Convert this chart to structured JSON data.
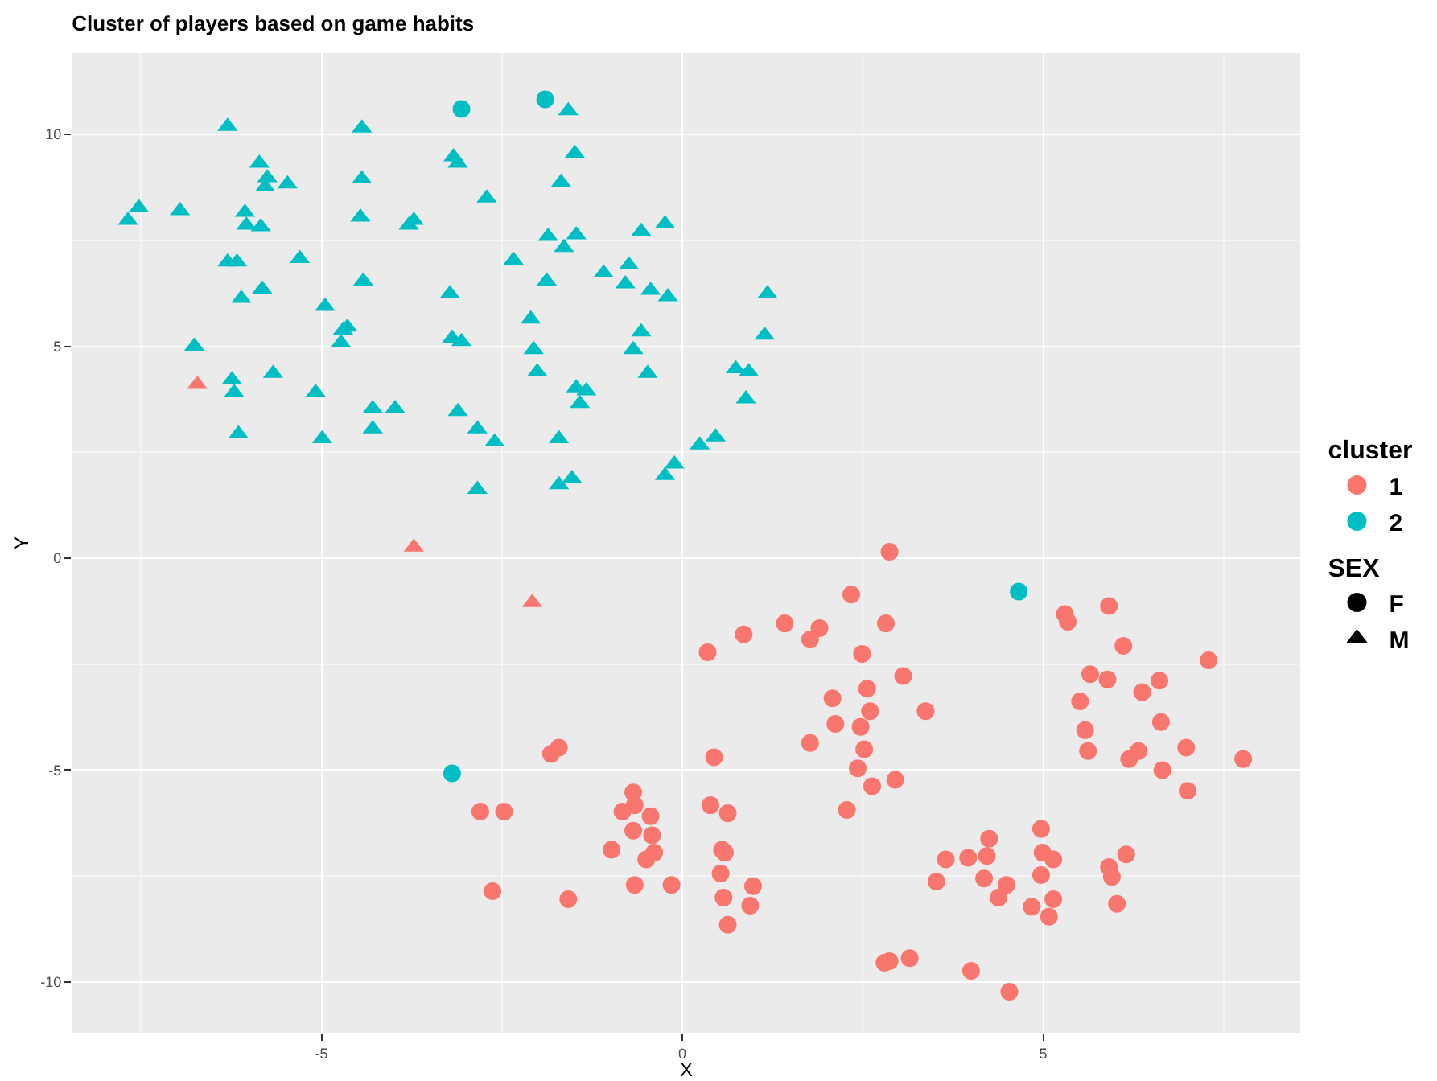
{
  "chart_data": {
    "type": "scatter",
    "title": "Cluster of players based on game habits",
    "xlabel": "X",
    "ylabel": "Y",
    "legend_title": [
      "cluster",
      "SEX"
    ],
    "legend": "right",
    "grid": true,
    "xlim": [
      -8.45,
      8.56
    ],
    "xticks": [
      -5,
      0,
      5
    ],
    "ylim": [
      -11.2,
      11.92
    ],
    "yticks": [
      -10,
      -5,
      0,
      5,
      10
    ],
    "series": [
      {
        "name": "1",
        "color": "#f8766d",
        "marker": "circle",
        "x": [
          -2.8,
          -2.47,
          -2.63,
          -1.82,
          -1.71,
          -1.58,
          -0.98,
          -0.83,
          -0.68,
          -0.66,
          -0.68,
          -0.66,
          -0.5,
          -0.42,
          -0.44,
          -0.39,
          -0.15,
          0.35,
          0.44,
          0.39,
          0.53,
          0.55,
          0.57,
          0.63,
          0.59,
          0.63,
          0.85,
          0.94,
          0.98,
          1.42,
          1.77,
          1.9,
          1.77,
          2.08,
          2.12,
          2.28,
          2.34,
          2.49,
          2.56,
          2.47,
          2.43,
          2.52,
          2.63,
          2.6,
          2.82,
          2.87,
          2.95,
          3.06,
          3.37,
          2.8,
          2.87,
          3.15,
          3.52,
          3.65,
          3.96,
          4.0,
          4.18,
          4.22,
          4.25,
          4.38,
          4.49,
          4.53,
          4.84,
          5.08,
          4.97,
          4.97,
          4.99,
          5.14,
          5.14,
          5.3,
          5.34,
          5.51,
          5.58,
          5.65,
          5.62,
          5.91,
          5.89,
          5.91,
          5.95,
          6.02,
          6.11,
          6.15,
          6.19,
          6.32,
          6.37,
          6.61,
          6.63,
          6.65,
          6.98,
          7.0,
          7.29,
          7.77
        ],
        "values": [
          -5.98,
          -5.98,
          -7.86,
          -4.62,
          -4.47,
          -8.05,
          -6.88,
          -5.98,
          -5.53,
          -5.83,
          -6.43,
          -7.71,
          -7.11,
          -6.54,
          -6.09,
          -6.95,
          -7.71,
          -2.22,
          -4.7,
          -5.83,
          -7.44,
          -6.88,
          -8.01,
          -8.65,
          -6.95,
          -6.02,
          -1.8,
          -8.2,
          -7.74,
          -1.54,
          -1.92,
          -1.65,
          -4.36,
          -3.31,
          -3.91,
          -5.94,
          -0.86,
          -2.26,
          -3.08,
          -3.98,
          -4.96,
          -4.51,
          -5.38,
          -3.61,
          -1.54,
          0.15,
          -5.23,
          -2.78,
          -3.61,
          -9.55,
          -9.51,
          -9.44,
          -7.63,
          -7.11,
          -7.07,
          -9.74,
          -7.56,
          -7.03,
          -6.62,
          -8.01,
          -7.71,
          -10.23,
          -8.23,
          -8.46,
          -6.39,
          -7.48,
          -6.95,
          -7.11,
          -8.05,
          -1.32,
          -1.5,
          -3.38,
          -4.06,
          -2.74,
          -4.55,
          -1.13,
          -2.86,
          -7.29,
          -7.52,
          -8.16,
          -2.07,
          -6.99,
          -4.74,
          -4.55,
          -3.16,
          -2.89,
          -3.87,
          -5.0,
          -4.47,
          -5.49,
          -2.41,
          -4.74
        ]
      },
      {
        "color": "#f8766d",
        "marker": "triangle",
        "x": [
          -6.72,
          -3.72,
          -2.08
        ],
        "values": [
          4.1,
          0.26,
          -1.05
        ]
      },
      {
        "name": "2",
        "color": "#00bfc4",
        "marker": "circle",
        "x": [
          -3.06,
          -1.9,
          4.66,
          -3.19
        ],
        "values": [
          10.6,
          10.83,
          -0.79,
          -5.08
        ]
      },
      {
        "color": "#00bfc4",
        "marker": "triangle",
        "x": [
          -7.68,
          -7.53,
          -6.96,
          -6.76,
          -6.24,
          -6.3,
          -6.3,
          -6.21,
          -6.15,
          -6.11,
          -6.04,
          -6.17,
          -6.06,
          -5.86,
          -5.78,
          -5.84,
          -5.82,
          -5.75,
          -5.67,
          -5.47,
          -5.3,
          -5.08,
          -4.95,
          -4.99,
          -4.73,
          -4.7,
          -4.64,
          -4.44,
          -4.44,
          -4.42,
          -4.46,
          -4.29,
          -4.29,
          -3.98,
          -3.79,
          -3.72,
          -3.22,
          -3.17,
          -3.19,
          -3.11,
          -3.11,
          -3.06,
          -2.84,
          -2.71,
          -2.6,
          -2.84,
          -2.34,
          -2.1,
          -2.06,
          -2.01,
          -1.88,
          -1.86,
          -1.68,
          -1.71,
          -1.64,
          -1.71,
          -1.58,
          -1.49,
          -1.53,
          -1.47,
          -1.47,
          -1.42,
          -1.33,
          -1.09,
          -0.79,
          -0.74,
          -0.68,
          -0.57,
          -0.57,
          -0.48,
          -0.44,
          -0.24,
          -0.2,
          -0.24,
          -0.11,
          0.24,
          0.46,
          0.74,
          0.88,
          0.92,
          1.18,
          1.14
        ],
        "values": [
          7.97,
          8.27,
          8.2,
          5.0,
          4.21,
          6.99,
          10.19,
          3.91,
          2.93,
          6.13,
          7.86,
          6.99,
          8.16,
          9.32,
          8.76,
          7.82,
          6.35,
          8.98,
          4.36,
          8.83,
          7.07,
          3.91,
          5.94,
          2.82,
          5.08,
          5.38,
          5.45,
          10.15,
          8.95,
          6.54,
          8.05,
          3.05,
          3.53,
          3.53,
          7.86,
          7.97,
          6.24,
          9.47,
          5.19,
          9.32,
          3.46,
          5.11,
          3.05,
          8.5,
          2.74,
          1.62,
          7.03,
          5.64,
          4.92,
          4.4,
          6.54,
          7.59,
          8.87,
          1.73,
          7.33,
          2.82,
          10.56,
          9.55,
          1.88,
          7.63,
          4.02,
          3.65,
          3.95,
          6.73,
          6.47,
          6.92,
          4.92,
          7.71,
          5.34,
          4.36,
          6.32,
          7.89,
          6.17,
          1.95,
          2.22,
          2.67,
          2.86,
          4.47,
          3.76,
          4.4,
          6.24,
          5.26
        ]
      },
      {
        "name": "F",
        "color": "#000000",
        "marker": "circle"
      },
      {
        "name": "M",
        "color": "#000000",
        "marker": "triangle"
      }
    ]
  }
}
